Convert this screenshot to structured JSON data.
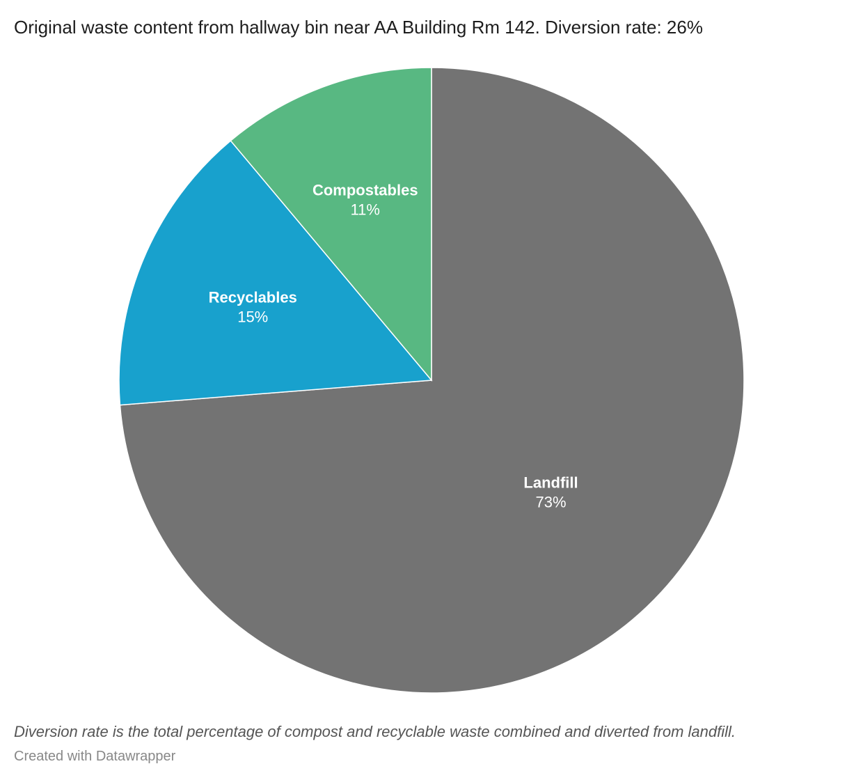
{
  "chart_data": {
    "type": "pie",
    "subtitle": "Original waste content from hallway bin near AA Building Rm 142. Diversion rate: 26%",
    "slices": [
      {
        "label": "Landfill",
        "value": 73,
        "value_label": "73%",
        "color": "#737373"
      },
      {
        "label": "Recyclables",
        "value": 15,
        "value_label": "15%",
        "color": "#18a1cd"
      },
      {
        "label": "Compostables",
        "value": 11,
        "value_label": "11%",
        "color": "#58b882"
      }
    ],
    "notes": "Diversion rate is the total percentage of compost and recyclable waste combined and diverted from landfill.",
    "credit": "Created with Datawrapper"
  }
}
